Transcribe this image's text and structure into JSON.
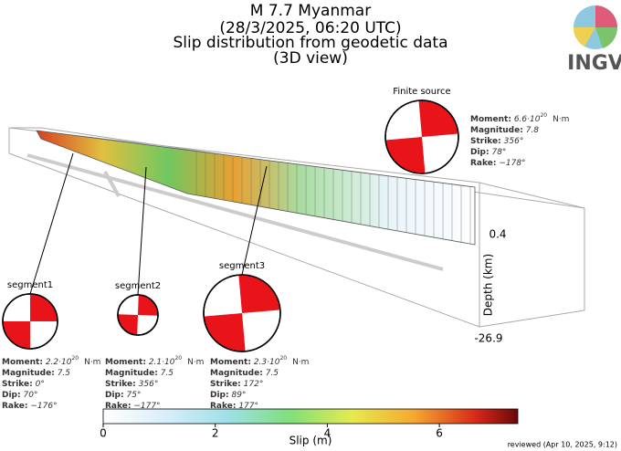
{
  "header": {
    "title": "M 7.7 Myanmar",
    "date": "(28/3/2025, 06:20 UTC)",
    "subtitle": "Slip distribution from geodetic data",
    "view": "(3D view)"
  },
  "logo": {
    "text": "INGV"
  },
  "field_labels": {
    "moment": "Moment:",
    "magnitude": "Magnitude:",
    "strike": "Strike:",
    "dip": "Dip:",
    "rake": "Rake:"
  },
  "moment_unit": "N·m",
  "sources": [
    {
      "name": "Finite source",
      "moment": {
        "mantissa": "6.6·10",
        "exponent": "20"
      },
      "magnitude": "7.8",
      "strike": "356°",
      "dip": "78°",
      "rake": "−178°"
    },
    {
      "name": "segment1",
      "moment": {
        "mantissa": "2.2·10",
        "exponent": "20"
      },
      "magnitude": "7.5",
      "strike": "0°",
      "dip": "70°",
      "rake": "−176°"
    },
    {
      "name": "segment2",
      "moment": {
        "mantissa": "2.1·10",
        "exponent": "20"
      },
      "magnitude": "7.5",
      "strike": "356°",
      "dip": "75°",
      "rake": "−177°"
    },
    {
      "name": "segment3",
      "moment": {
        "mantissa": "2.3·10",
        "exponent": "20"
      },
      "magnitude": "7.5",
      "strike": "172°",
      "dip": "89°",
      "rake": "177°"
    }
  ],
  "depth_axis": {
    "label": "Depth (km)",
    "top": "0.4",
    "bottom": "-26.9"
  },
  "colorbar": {
    "label": "Slip (m)",
    "lim": [
      0,
      7.4
    ],
    "ticks": [
      0,
      2,
      4,
      6
    ]
  },
  "footer": "reviewed (Apr 10, 2025, 9:12)"
}
